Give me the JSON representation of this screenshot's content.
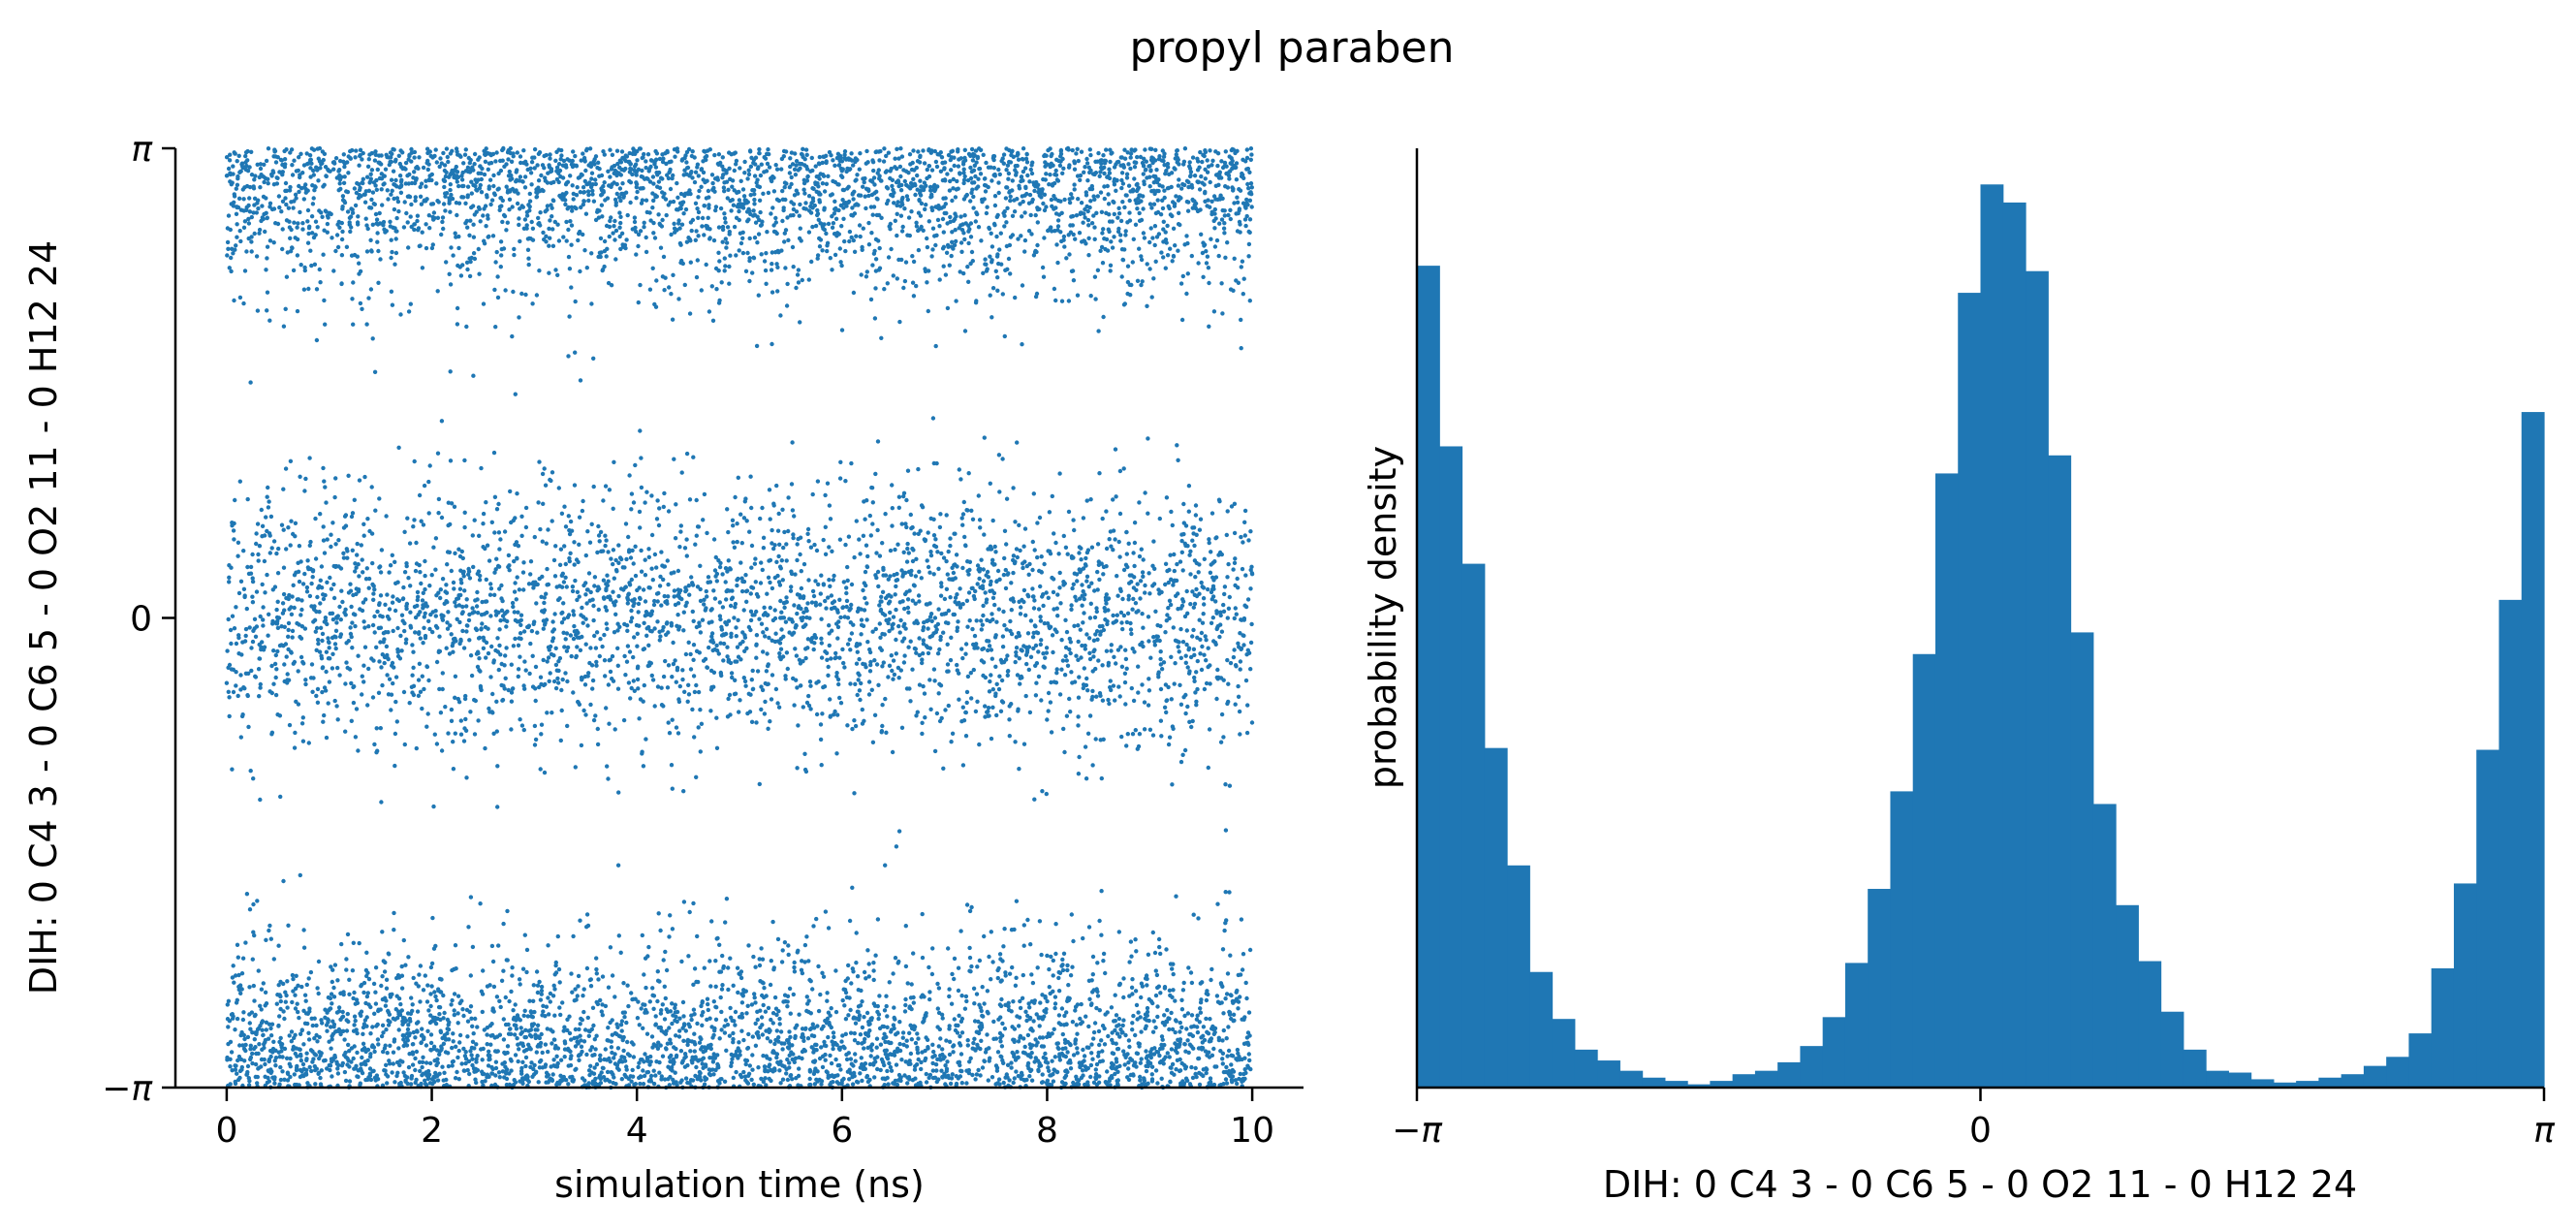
{
  "title": "propyl paraben",
  "colors": {
    "series": "#1f77b4",
    "axes": "#000000"
  },
  "chart_data": [
    {
      "type": "scatter",
      "xlabel": "simulation time (ns)",
      "ylabel": "DIH:  0 C4 3 -  0 C6 5 -  0 O2 11 -  0 H12 24",
      "xlim": [
        -0.5,
        10.5
      ],
      "ylim": [
        -3.14159,
        3.14159
      ],
      "xticks": [
        0,
        2,
        4,
        6,
        8,
        10
      ],
      "xticklabels": [
        "0",
        "2",
        "4",
        "6",
        "8",
        "10"
      ],
      "yticks": [
        -3.14159,
        0,
        3.14159
      ],
      "yticklabels": [
        "−π",
        "0",
        "π"
      ],
      "grid": false,
      "legend": "none",
      "clusters": [
        {
          "center": 3.14159,
          "spread": 0.45,
          "fraction": 0.33,
          "wraps": true
        },
        {
          "center": 0.0,
          "spread": 0.42,
          "fraction": 0.34,
          "wraps": false
        }
      ],
      "n_points": 10000,
      "t_range": [
        0,
        10
      ]
    },
    {
      "type": "bar",
      "subtype": "histogram",
      "xlabel": "DIH:  0 C4 3 -  0 C6 5 -  0 O2 11 -  0 H12 24",
      "ylabel": "probability density",
      "xlim": [
        -3.14159,
        3.14159
      ],
      "xticks": [
        -3.14159,
        0,
        3.14159
      ],
      "xticklabels": [
        "−π",
        "0",
        "π"
      ],
      "bins": 50,
      "values": [
        0.455,
        0.355,
        0.29,
        0.188,
        0.123,
        0.064,
        0.038,
        0.021,
        0.015,
        0.0093,
        0.0055,
        0.0037,
        0.0018,
        0.0037,
        0.0074,
        0.0093,
        0.014,
        0.023,
        0.039,
        0.069,
        0.11,
        0.164,
        0.24,
        0.34,
        0.44,
        0.5,
        0.49,
        0.452,
        0.35,
        0.252,
        0.157,
        0.101,
        0.07,
        0.042,
        0.021,
        0.0093,
        0.0083,
        0.0046,
        0.0028,
        0.0037,
        0.0055,
        0.0074,
        0.012,
        0.017,
        0.03,
        0.066,
        0.113,
        0.187,
        0.27,
        0.374
      ],
      "grid": false,
      "legend": "none"
    }
  ]
}
